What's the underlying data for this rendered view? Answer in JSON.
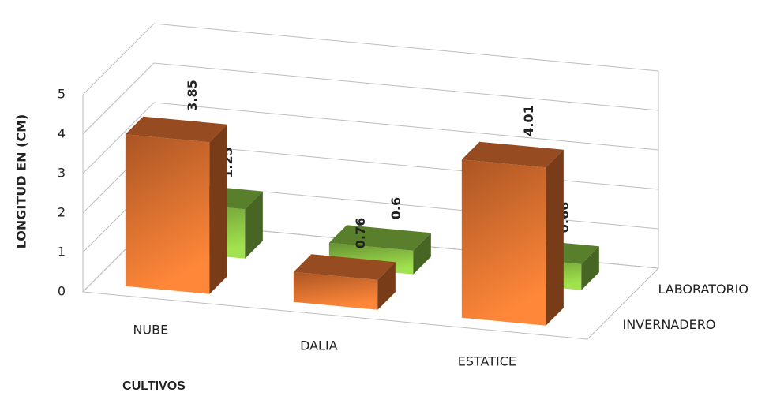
{
  "chart_data": {
    "type": "bar3d",
    "ylabel": "LONGITUD EN (CM)",
    "xlabel": "CULTIVOS",
    "categories": [
      "NUBE",
      "DALIA",
      "ESTATICE"
    ],
    "series": [
      {
        "name": "INVERNADERO",
        "color": "#c8642a",
        "values": [
          3.85,
          0.76,
          4.01
        ]
      },
      {
        "name": "LABORATORIO",
        "color": "#77a83a",
        "values": [
          1.25,
          0.6,
          0.66
        ]
      }
    ],
    "ylim": [
      0,
      5
    ],
    "yticks": [
      0,
      1,
      2,
      3,
      4,
      5
    ],
    "grid": true
  }
}
